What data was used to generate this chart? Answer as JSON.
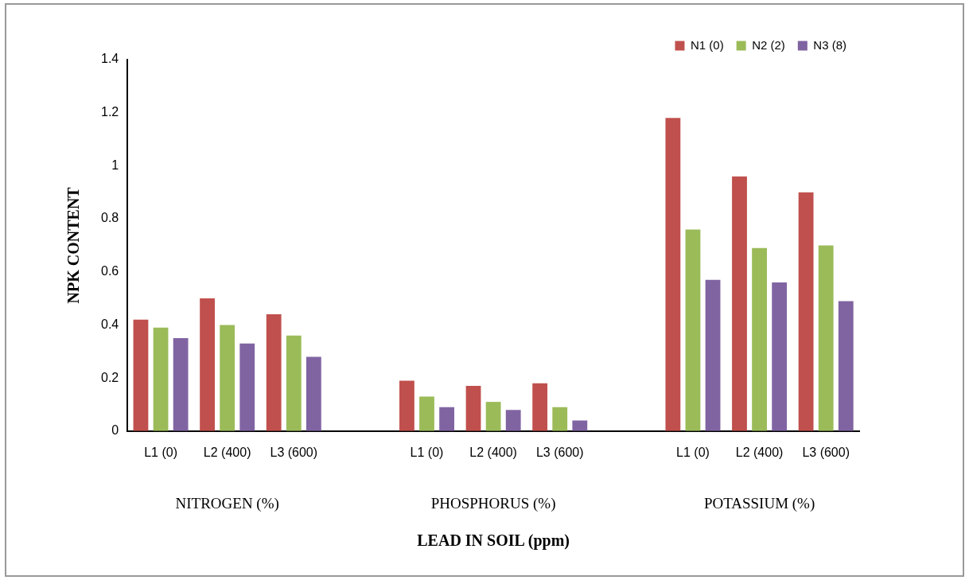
{
  "chart_data": {
    "type": "bar",
    "categories": [
      "L1 (0)",
      "L2 (400)",
      "L3 (600)",
      null,
      "L1 (0)",
      "L2 (400)",
      "L3 (600)",
      null,
      "L1 (0)",
      "L2 (400)",
      "L3 (600)"
    ],
    "series": [
      {
        "name": "N1 (0)",
        "color": "#c0504d",
        "values": [
          0.42,
          0.5,
          0.44,
          null,
          0.19,
          0.17,
          0.18,
          null,
          1.18,
          0.96,
          0.9
        ]
      },
      {
        "name": "N2 (2)",
        "color": "#9bbb59",
        "values": [
          0.39,
          0.4,
          0.36,
          null,
          0.13,
          0.11,
          0.09,
          null,
          0.76,
          0.69,
          0.7
        ]
      },
      {
        "name": "N3 (8)",
        "color": "#8064a2",
        "values": [
          0.35,
          0.33,
          0.28,
          null,
          0.09,
          0.08,
          0.04,
          null,
          0.57,
          0.56,
          0.49
        ]
      }
    ],
    "ylabel": "NPK CONTENT",
    "xlabel": "LEAD IN SOIL (ppm)",
    "annotations": [
      "NITROGEN (%)",
      "PHOSPHORUS (%)",
      "POTASSIUM (%)"
    ],
    "ylim": [
      0,
      1.4
    ],
    "yticks": [
      0,
      0.2,
      0.4,
      0.6,
      0.8,
      1,
      1.2,
      1.4
    ],
    "legend": "top right",
    "grid": false
  }
}
